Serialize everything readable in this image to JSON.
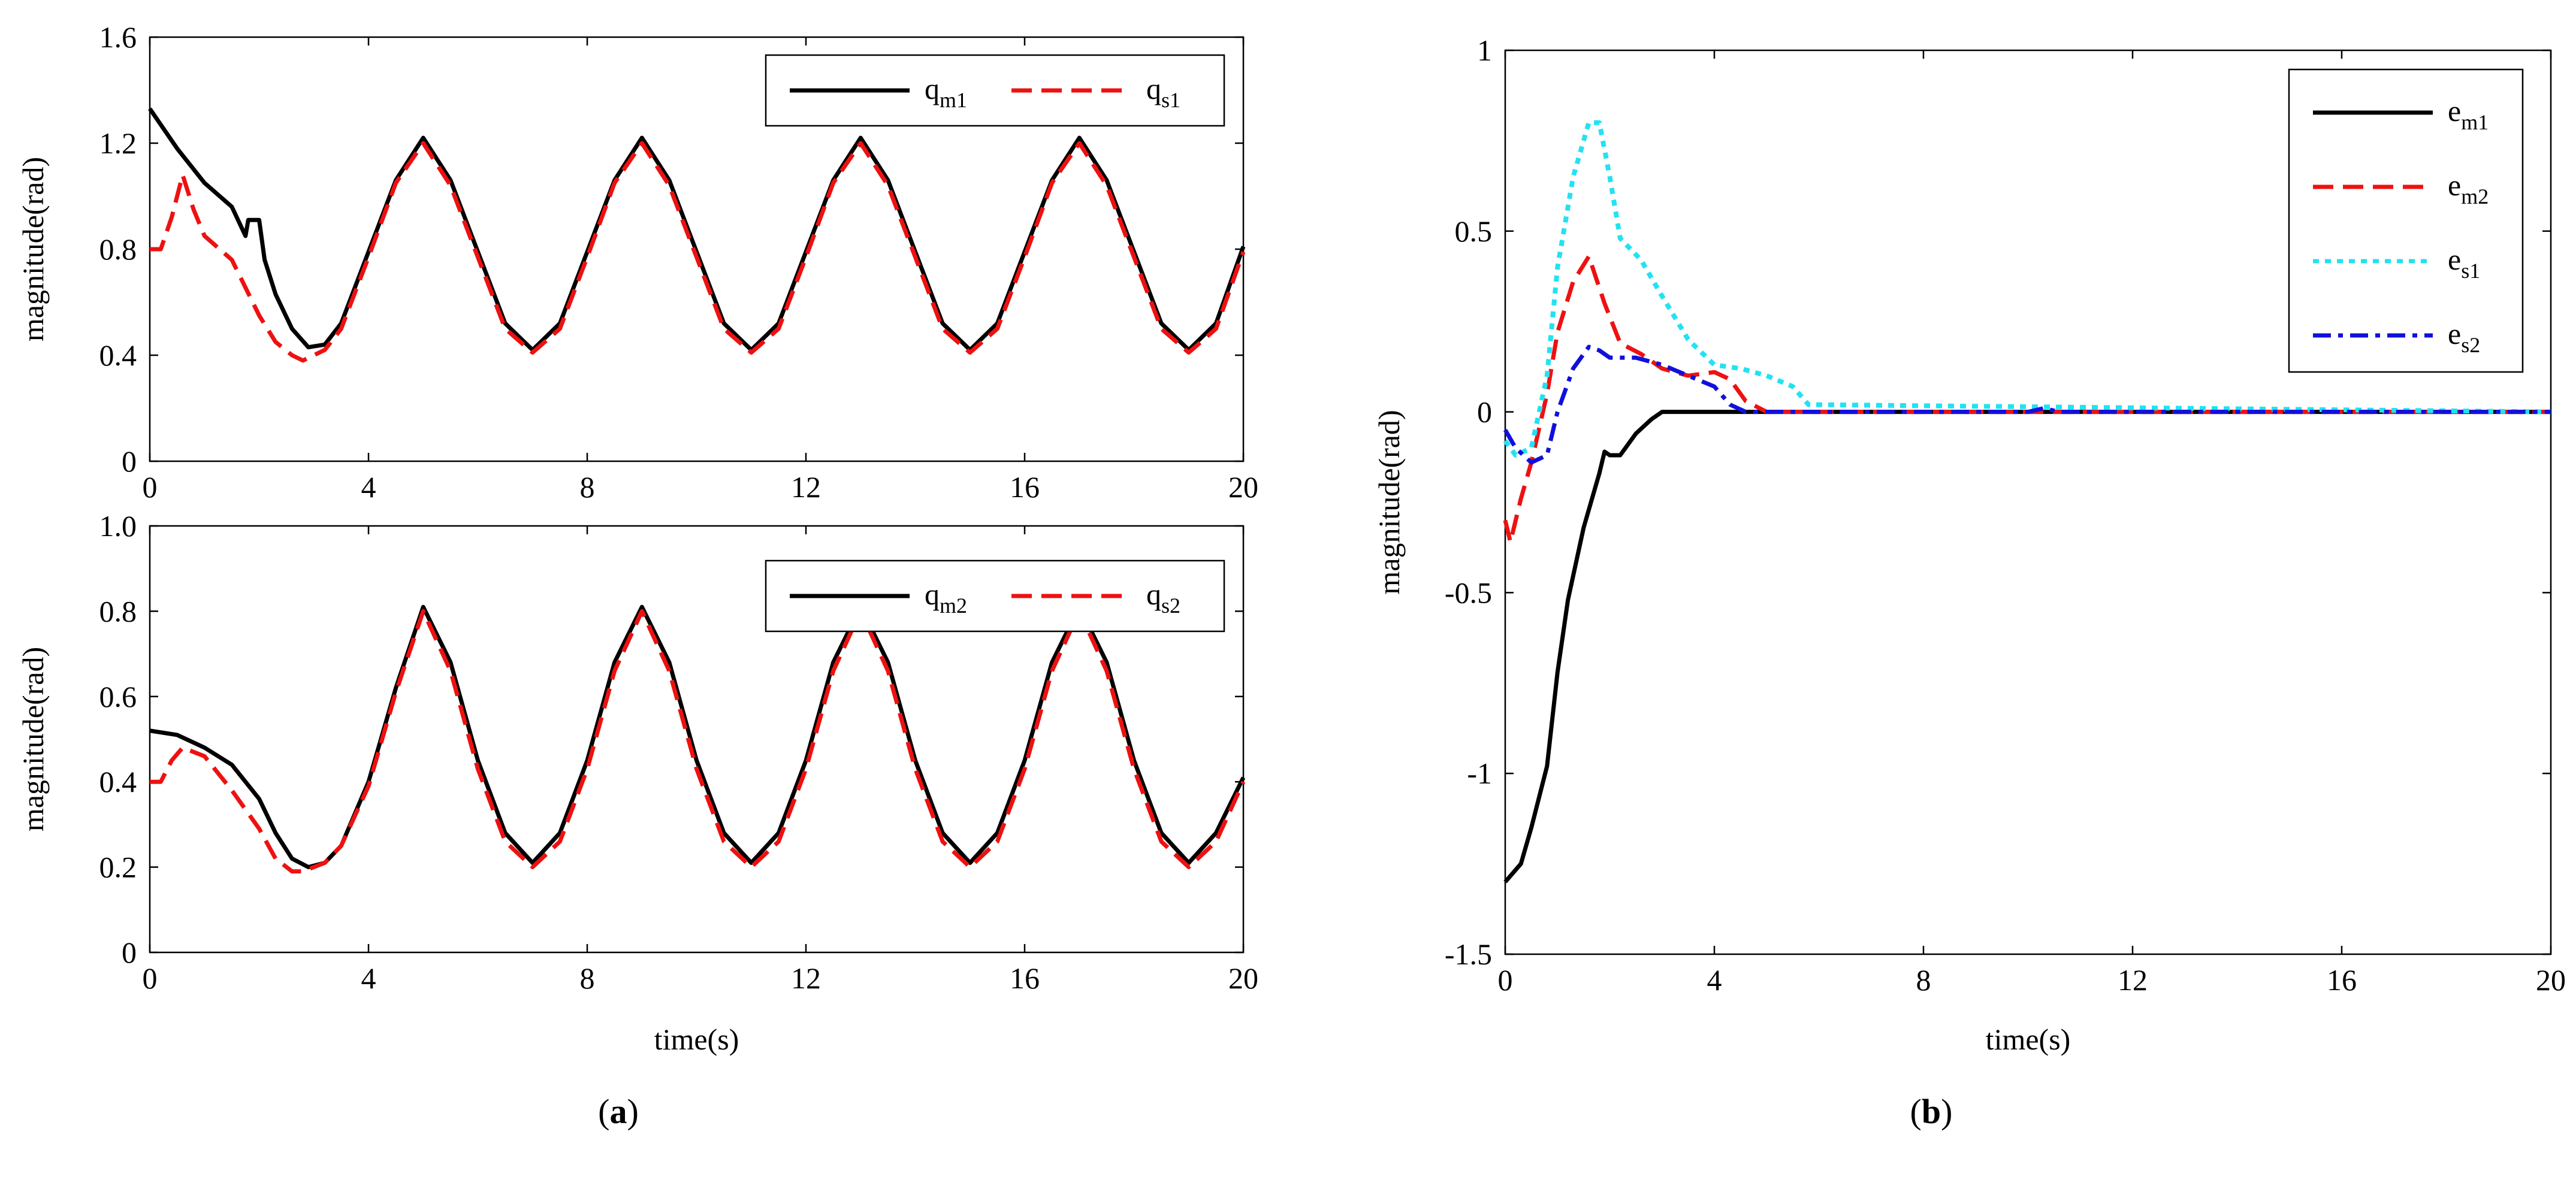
{
  "chart_data": [
    {
      "id": "a-top",
      "type": "line",
      "xlabel": "",
      "ylabel": "magnitude(rad)",
      "xlim": [
        0,
        20
      ],
      "ylim": [
        0,
        1.6
      ],
      "xticks": [
        0,
        4,
        8,
        12,
        16,
        20
      ],
      "xtick_labels": [
        "0",
        "4",
        "8",
        "12",
        "16",
        "20"
      ],
      "yticks": [
        0,
        0.4,
        0.8,
        1.2,
        1.6
      ],
      "ytick_labels": [
        "0",
        "0.4",
        "0.8",
        "1.2",
        "1.6"
      ],
      "legend_position": "top-right",
      "legend_layout": "horizontal",
      "series": [
        {
          "name": "q_m1",
          "label_main": "q",
          "label_sub": "m1",
          "color": "#000000",
          "style": "solid",
          "x": [
            0,
            0.5,
            1.0,
            1.5,
            1.75,
            1.8,
            2.0,
            2.1,
            2.3,
            2.6,
            2.9,
            3.2,
            3.5,
            4.0,
            4.5,
            5.0,
            5.5,
            6.0,
            6.5,
            7.0,
            7.5,
            8.0,
            8.5,
            9.0,
            9.5,
            10.0,
            10.5,
            11.0,
            11.5,
            12.0,
            12.5,
            13.0,
            13.5,
            14.0,
            14.5,
            15.0,
            15.5,
            16.0,
            16.5,
            17.0,
            17.5,
            18.0,
            18.5,
            19.0,
            19.5,
            20.0
          ],
          "y": [
            1.33,
            1.18,
            1.05,
            0.96,
            0.85,
            0.91,
            0.91,
            0.76,
            0.63,
            0.5,
            0.43,
            0.44,
            0.52,
            0.79,
            1.06,
            1.22,
            1.06,
            0.79,
            0.52,
            0.42,
            0.52,
            0.79,
            1.06,
            1.22,
            1.06,
            0.79,
            0.52,
            0.42,
            0.52,
            0.79,
            1.06,
            1.22,
            1.06,
            0.79,
            0.52,
            0.42,
            0.52,
            0.79,
            1.06,
            1.22,
            1.06,
            0.79,
            0.52,
            0.42,
            0.52,
            0.81
          ]
        },
        {
          "name": "q_s1",
          "label_main": "q",
          "label_sub": "s1",
          "color": "#ee1111",
          "style": "dashed",
          "x": [
            0,
            0.2,
            0.4,
            0.6,
            0.8,
            1.0,
            1.5,
            2.0,
            2.3,
            2.6,
            2.8,
            3.2,
            3.5,
            4.0,
            4.5,
            5.0,
            5.5,
            6.0,
            6.5,
            7.0,
            7.5,
            8.0,
            8.5,
            9.0,
            9.5,
            10.0,
            10.5,
            11.0,
            11.5,
            12.0,
            12.5,
            13.0,
            13.5,
            14.0,
            14.5,
            15.0,
            15.5,
            16.0,
            16.5,
            17.0,
            17.5,
            18.0,
            18.5,
            19.0,
            19.5,
            20.0
          ],
          "y": [
            0.8,
            0.8,
            0.92,
            1.08,
            0.95,
            0.85,
            0.76,
            0.55,
            0.45,
            0.4,
            0.38,
            0.42,
            0.5,
            0.77,
            1.05,
            1.2,
            1.04,
            0.77,
            0.5,
            0.41,
            0.5,
            0.77,
            1.05,
            1.2,
            1.04,
            0.77,
            0.5,
            0.41,
            0.5,
            0.77,
            1.05,
            1.2,
            1.04,
            0.77,
            0.5,
            0.41,
            0.5,
            0.77,
            1.05,
            1.2,
            1.04,
            0.77,
            0.5,
            0.41,
            0.5,
            0.79
          ]
        }
      ]
    },
    {
      "id": "a-bottom",
      "type": "line",
      "xlabel": "time(s)",
      "ylabel": "magnitude(rad)",
      "xlim": [
        0,
        20
      ],
      "ylim": [
        0,
        1.0
      ],
      "xticks": [
        0,
        4,
        8,
        12,
        16,
        20
      ],
      "xtick_labels": [
        "0",
        "4",
        "8",
        "12",
        "16",
        "20"
      ],
      "yticks": [
        0,
        0.2,
        0.4,
        0.6,
        0.8,
        1.0
      ],
      "ytick_labels": [
        "0",
        "0.2",
        "0.4",
        "0.6",
        "0.8",
        "1.0"
      ],
      "legend_position": "top-right",
      "legend_layout": "horizontal",
      "series": [
        {
          "name": "q_m2",
          "label_main": "q",
          "label_sub": "m2",
          "color": "#000000",
          "style": "solid",
          "x": [
            0,
            0.5,
            1.0,
            1.5,
            2.0,
            2.3,
            2.6,
            2.9,
            3.2,
            3.5,
            4.0,
            4.5,
            5.0,
            5.5,
            6.0,
            6.5,
            7.0,
            7.5,
            8.0,
            8.5,
            9.0,
            9.5,
            10.0,
            10.5,
            11.0,
            11.5,
            12.0,
            12.5,
            13.0,
            13.5,
            14.0,
            14.5,
            15.0,
            15.5,
            16.0,
            16.5,
            17.0,
            17.5,
            18.0,
            18.5,
            19.0,
            19.5,
            20.0
          ],
          "y": [
            0.52,
            0.51,
            0.48,
            0.44,
            0.36,
            0.28,
            0.22,
            0.2,
            0.21,
            0.25,
            0.4,
            0.62,
            0.81,
            0.68,
            0.45,
            0.28,
            0.21,
            0.28,
            0.45,
            0.68,
            0.81,
            0.68,
            0.45,
            0.28,
            0.21,
            0.28,
            0.45,
            0.68,
            0.81,
            0.68,
            0.45,
            0.28,
            0.21,
            0.28,
            0.45,
            0.68,
            0.81,
            0.68,
            0.45,
            0.28,
            0.21,
            0.28,
            0.41
          ]
        },
        {
          "name": "q_s2",
          "label_main": "q",
          "label_sub": "s2",
          "color": "#ee1111",
          "style": "dashed",
          "x": [
            0,
            0.2,
            0.4,
            0.6,
            1.0,
            1.5,
            2.0,
            2.3,
            2.6,
            2.8,
            3.2,
            3.5,
            4.0,
            4.5,
            5.0,
            5.5,
            6.0,
            6.5,
            7.0,
            7.5,
            8.0,
            8.5,
            9.0,
            9.5,
            10.0,
            10.5,
            11.0,
            11.5,
            12.0,
            12.5,
            13.0,
            13.5,
            14.0,
            14.5,
            15.0,
            15.5,
            16.0,
            16.5,
            17.0,
            17.5,
            18.0,
            18.5,
            19.0,
            19.5,
            20.0
          ],
          "y": [
            0.4,
            0.4,
            0.45,
            0.48,
            0.46,
            0.38,
            0.29,
            0.22,
            0.19,
            0.19,
            0.21,
            0.25,
            0.39,
            0.61,
            0.8,
            0.66,
            0.43,
            0.26,
            0.2,
            0.26,
            0.43,
            0.66,
            0.8,
            0.66,
            0.43,
            0.26,
            0.2,
            0.26,
            0.43,
            0.66,
            0.8,
            0.66,
            0.43,
            0.26,
            0.2,
            0.26,
            0.43,
            0.66,
            0.8,
            0.66,
            0.43,
            0.26,
            0.2,
            0.26,
            0.4
          ]
        }
      ]
    },
    {
      "id": "b",
      "type": "line",
      "xlabel": "time(s)",
      "ylabel": "magnitude(rad)",
      "xlim": [
        0,
        20
      ],
      "ylim": [
        -1.5,
        1
      ],
      "xticks": [
        0,
        4,
        8,
        12,
        16,
        20
      ],
      "xtick_labels": [
        "0",
        "4",
        "8",
        "12",
        "16",
        "20"
      ],
      "yticks": [
        -1.5,
        -1,
        -0.5,
        0,
        0.5,
        1
      ],
      "ytick_labels": [
        "-1.5",
        "-1",
        "-0.5",
        "0",
        "0.5",
        "1"
      ],
      "legend_position": "top-right",
      "legend_layout": "vertical",
      "series": [
        {
          "name": "e_m1",
          "label_main": "e",
          "label_sub": "m1",
          "color": "#000000",
          "style": "solid",
          "x": [
            0,
            0.3,
            0.5,
            0.8,
            1.0,
            1.2,
            1.5,
            1.8,
            1.9,
            2.0,
            2.2,
            2.5,
            2.8,
            3.0,
            3.5,
            4.0,
            20.0
          ],
          "y": [
            -1.3,
            -1.25,
            -1.15,
            -0.98,
            -0.72,
            -0.52,
            -0.32,
            -0.17,
            -0.11,
            -0.12,
            -0.12,
            -0.06,
            -0.02,
            0.0,
            0.0,
            0.0,
            0.0
          ]
        },
        {
          "name": "e_m2",
          "label_main": "e",
          "label_sub": "m2",
          "color": "#ee1111",
          "style": "dashed",
          "x": [
            0,
            0.1,
            0.3,
            0.5,
            0.8,
            1.0,
            1.3,
            1.6,
            1.9,
            2.2,
            2.6,
            3.0,
            3.5,
            4.0,
            4.3,
            4.6,
            5.0,
            20.0
          ],
          "y": [
            -0.3,
            -0.36,
            -0.24,
            -0.14,
            0.05,
            0.22,
            0.36,
            0.43,
            0.3,
            0.19,
            0.16,
            0.12,
            0.1,
            0.11,
            0.09,
            0.03,
            0.0,
            0.0
          ]
        },
        {
          "name": "e_s1",
          "label_main": "e",
          "label_sub": "s1",
          "color": "#22e2f2",
          "style": "dotted",
          "x": [
            0,
            0.2,
            0.5,
            0.8,
            1.0,
            1.3,
            1.6,
            1.8,
            2.0,
            2.2,
            2.6,
            3.0,
            3.5,
            4.0,
            4.5,
            5.0,
            5.5,
            5.8,
            20.0
          ],
          "y": [
            -0.08,
            -0.12,
            -0.1,
            0.1,
            0.4,
            0.65,
            0.8,
            0.8,
            0.65,
            0.48,
            0.42,
            0.32,
            0.2,
            0.13,
            0.12,
            0.1,
            0.07,
            0.02,
            0.0
          ]
        },
        {
          "name": "e_s2",
          "label_main": "e",
          "label_sub": "s2",
          "color": "#1010dd",
          "style": "dashdot",
          "x": [
            0,
            0.2,
            0.5,
            0.8,
            1.0,
            1.3,
            1.6,
            1.8,
            2.0,
            2.5,
            3.0,
            3.5,
            4.0,
            4.3,
            4.6,
            10.0,
            10.3,
            10.6,
            20.0
          ],
          "y": [
            -0.05,
            -0.1,
            -0.14,
            -0.12,
            0.0,
            0.12,
            0.18,
            0.17,
            0.15,
            0.15,
            0.13,
            0.1,
            0.07,
            0.02,
            0.0,
            0.0,
            0.01,
            0.0,
            0.0
          ]
        }
      ]
    }
  ],
  "panel_labels": [
    "(a)",
    "(b)"
  ],
  "panel_letters": [
    "a",
    "b"
  ],
  "panel_paren_open": "(",
  "panel_paren_close": ")"
}
